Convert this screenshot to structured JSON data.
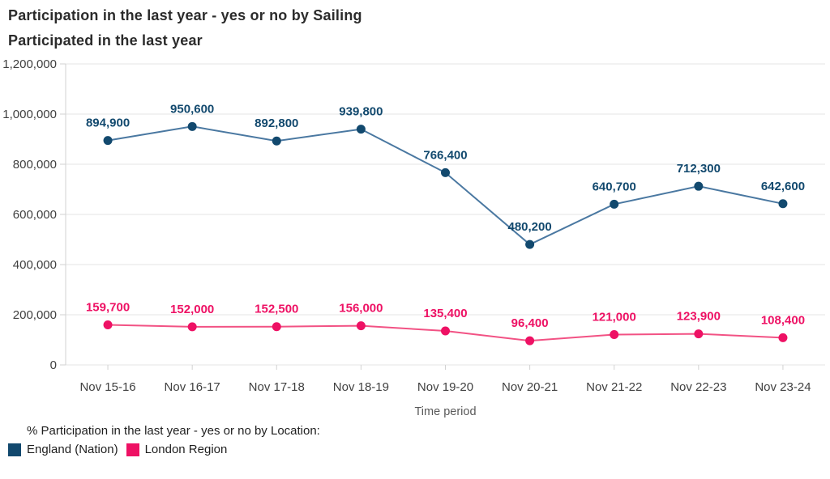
{
  "header": {
    "title": "Participation in the last year - yes or no by Sailing",
    "subtitle": "Participated in the last year"
  },
  "chart_data": {
    "type": "line",
    "categories": [
      "Nov 15-16",
      "Nov 16-17",
      "Nov 17-18",
      "Nov 18-19",
      "Nov 19-20",
      "Nov 20-21",
      "Nov 21-22",
      "Nov 22-23",
      "Nov 23-24"
    ],
    "series": [
      {
        "name": "England (Nation)",
        "values": [
          894900,
          950600,
          892800,
          939800,
          766400,
          480200,
          640700,
          712300,
          642600
        ],
        "color": "#12496E",
        "line_color": "#4A78A1"
      },
      {
        "name": "London Region",
        "values": [
          159700,
          152000,
          152500,
          156000,
          135400,
          96400,
          121000,
          123900,
          108400
        ],
        "color": "#EE1164",
        "line_color": "#F2528413"
      }
    ],
    "xlabel": "Time period",
    "ylabel": "",
    "ylim": [
      0,
      1200000
    ],
    "ytick_step": 200000,
    "grid": true,
    "legend_title": "% Participation in the last year - yes or no by Location:",
    "legend_position": "bottom-left"
  },
  "colors": {
    "gridline": "#E5E5E5",
    "axis": "#D2D2D2",
    "tick_label": "#404040",
    "axis_title": "#595959"
  }
}
